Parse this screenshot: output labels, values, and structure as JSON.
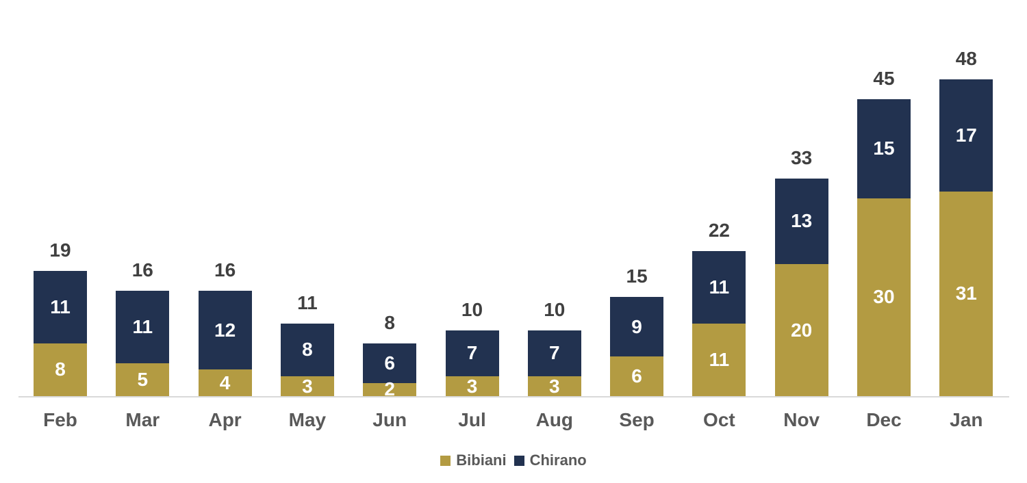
{
  "chart_data": {
    "type": "bar",
    "stacked": true,
    "orientation": "vertical",
    "title": "",
    "xlabel": "",
    "ylabel": "",
    "grid": false,
    "ylim": [
      0,
      48
    ],
    "legend_position": "bottom",
    "categories": [
      "Feb",
      "Mar",
      "Apr",
      "May",
      "Jun",
      "Jul",
      "Aug",
      "Sep",
      "Oct",
      "Nov",
      "Dec",
      "Jan"
    ],
    "series": [
      {
        "name": "Bibiani",
        "color": "#B39B42",
        "values": [
          8,
          5,
          4,
          3,
          2,
          3,
          3,
          6,
          11,
          20,
          30,
          31
        ]
      },
      {
        "name": "Chirano",
        "color": "#223250",
        "values": [
          11,
          11,
          12,
          8,
          6,
          7,
          7,
          9,
          11,
          13,
          15,
          17
        ]
      }
    ],
    "totals": [
      19,
      16,
      16,
      11,
      8,
      10,
      10,
      15,
      22,
      33,
      45,
      48
    ],
    "legend": [
      "Bibiani",
      "Chirano"
    ],
    "colors": {
      "total_label": "#404040",
      "segment_label": "#FFFFFF",
      "category_label": "#595959",
      "legend_label": "#595959",
      "axis_line": "#D9D9D9",
      "background": "#FFFFFF"
    }
  }
}
